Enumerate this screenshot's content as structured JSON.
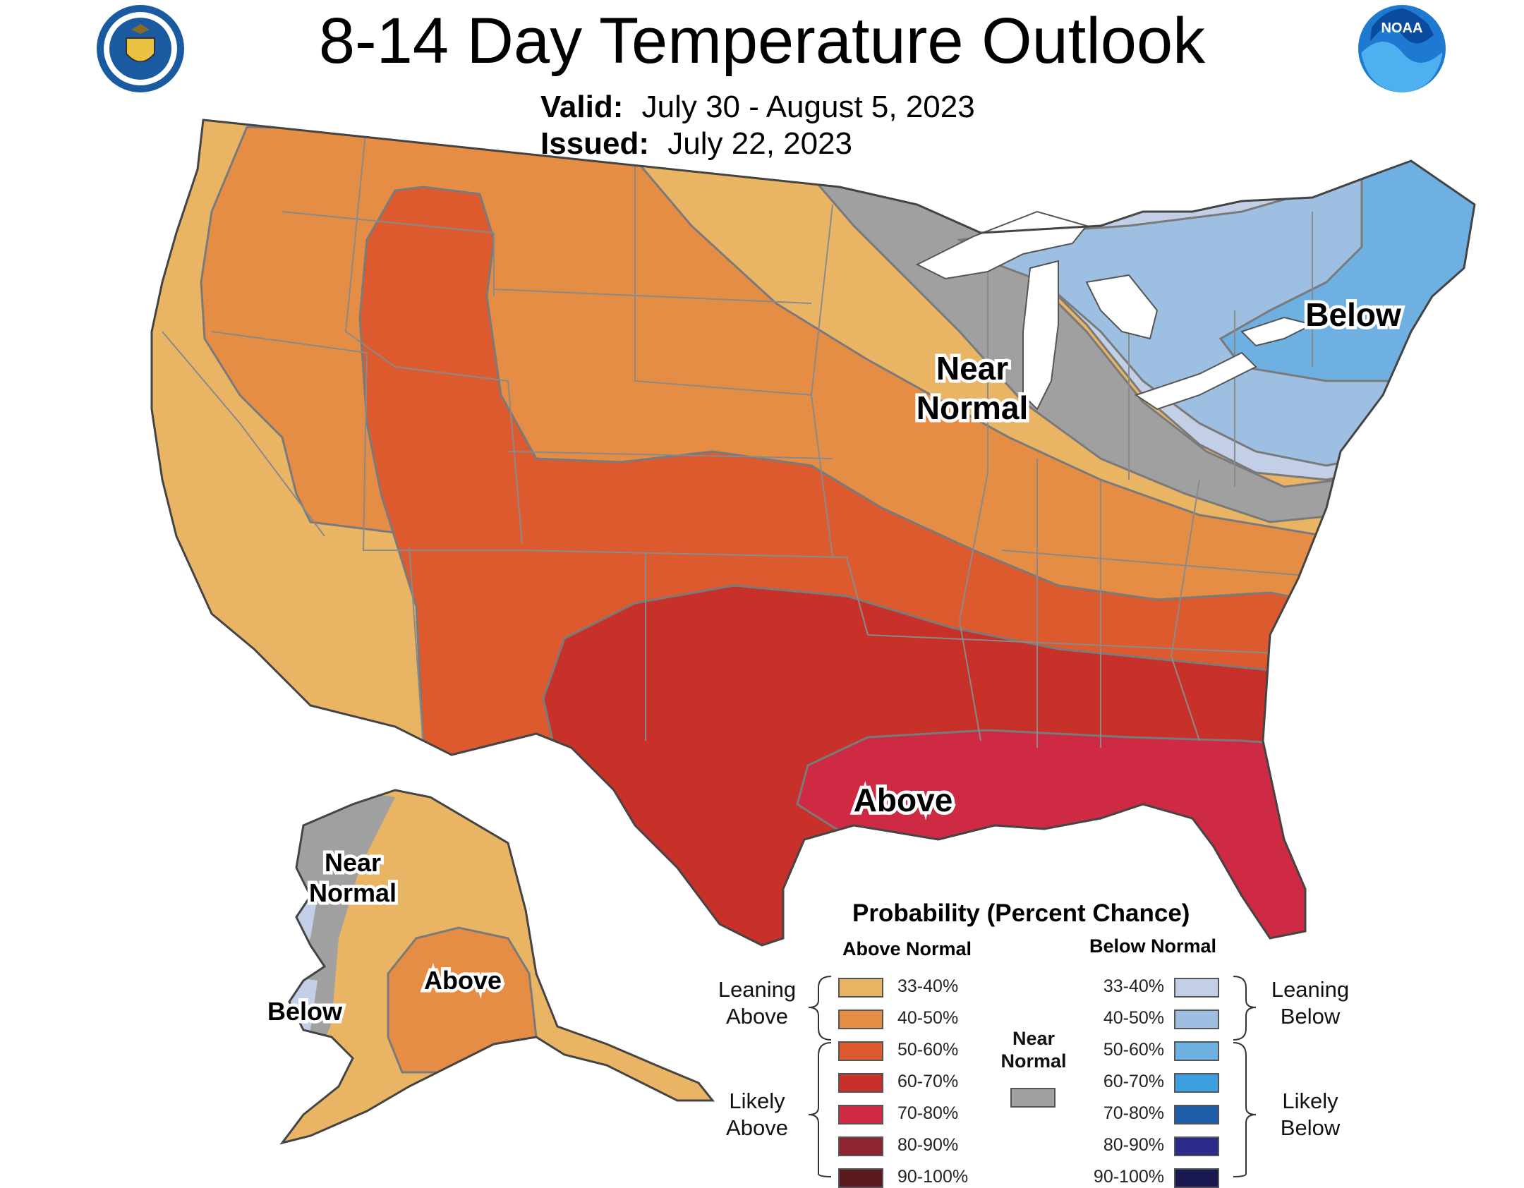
{
  "title": "8-14 Day Temperature Outlook",
  "valid_label": "Valid:",
  "valid_value": "July 30 - August 5, 2023",
  "issued_label": "Issued:",
  "issued_value": "July 22, 2023",
  "logos": {
    "left": "dept-of-commerce-seal",
    "right": "noaa-logo",
    "right_text": "NOAA"
  },
  "map_labels": {
    "near_normal_conus_1": "Near",
    "near_normal_conus_2": "Normal",
    "below_conus": "Below",
    "above_conus": "Above",
    "near_normal_ak_1": "Near",
    "near_normal_ak_2": "Normal",
    "above_ak": "Above",
    "below_ak": "Below"
  },
  "legend": {
    "title": "Probability (Percent Chance)",
    "above_header": "Above Normal",
    "below_header": "Below Normal",
    "near_normal_1": "Near",
    "near_normal_2": "Normal",
    "near_normal_color": "#a0a0a0",
    "leaning_above_1": "Leaning",
    "leaning_above_2": "Above",
    "likely_above_1": "Likely",
    "likely_above_2": "Above",
    "leaning_below_1": "Leaning",
    "leaning_below_2": "Below",
    "likely_below_1": "Likely",
    "likely_below_2": "Below",
    "above": [
      {
        "range": "33-40%",
        "color": "#e9b565"
      },
      {
        "range": "40-50%",
        "color": "#e58d45"
      },
      {
        "range": "50-60%",
        "color": "#dc5a2e"
      },
      {
        "range": "60-70%",
        "color": "#c8302a"
      },
      {
        "range": "70-80%",
        "color": "#cf2a44"
      },
      {
        "range": "80-90%",
        "color": "#8e2432"
      },
      {
        "range": "90-100%",
        "color": "#5a1a1e"
      }
    ],
    "below": [
      {
        "range": "33-40%",
        "color": "#c3cfe6"
      },
      {
        "range": "40-50%",
        "color": "#9dbfe2"
      },
      {
        "range": "50-60%",
        "color": "#6eb0e2"
      },
      {
        "range": "60-70%",
        "color": "#3d9fdf"
      },
      {
        "range": "70-80%",
        "color": "#1c5fa8"
      },
      {
        "range": "80-90%",
        "color": "#2c2a8a"
      },
      {
        "range": "90-100%",
        "color": "#1a1850"
      }
    ]
  }
}
